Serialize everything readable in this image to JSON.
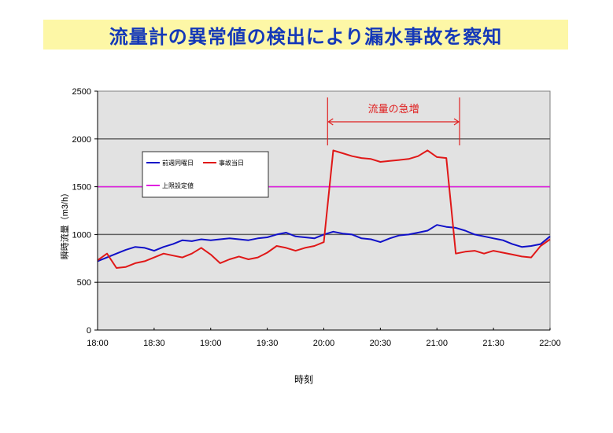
{
  "title": "流量計の異常値の検出により漏水事故を察知",
  "chart_data": {
    "type": "line",
    "title": "流量計の異常値の検出により漏水事故を察知",
    "xlabel": "時刻",
    "ylabel": "瞬時流量（m3/h）",
    "ylim": [
      0,
      2500
    ],
    "yticks": [
      0,
      500,
      1000,
      1500,
      2000,
      2500
    ],
    "xticks": [
      "18:00",
      "18:30",
      "19:00",
      "19:30",
      "20:00",
      "20:30",
      "21:00",
      "21:30",
      "22:00"
    ],
    "grid": true,
    "legend_position": "upper-left inside plot",
    "x": [
      "18:00",
      "18:05",
      "18:10",
      "18:15",
      "18:20",
      "18:25",
      "18:30",
      "18:35",
      "18:40",
      "18:45",
      "18:50",
      "18:55",
      "19:00",
      "19:05",
      "19:10",
      "19:15",
      "19:20",
      "19:25",
      "19:30",
      "19:35",
      "19:40",
      "19:45",
      "19:50",
      "19:55",
      "20:00",
      "20:05",
      "20:10",
      "20:15",
      "20:20",
      "20:25",
      "20:30",
      "20:35",
      "20:40",
      "20:45",
      "20:50",
      "20:55",
      "21:00",
      "21:05",
      "21:10",
      "21:15",
      "21:20",
      "21:25",
      "21:30",
      "21:35",
      "21:40",
      "21:45",
      "21:50",
      "21:55",
      "22:00"
    ],
    "series": [
      {
        "name": "前週同曜日",
        "color": "#1010c8",
        "values": [
          720,
          760,
          800,
          840,
          870,
          860,
          830,
          870,
          900,
          940,
          930,
          950,
          940,
          950,
          960,
          950,
          940,
          960,
          970,
          1000,
          1020,
          980,
          970,
          960,
          1000,
          1030,
          1010,
          1000,
          960,
          950,
          920,
          960,
          990,
          1000,
          1020,
          1040,
          1100,
          1080,
          1070,
          1040,
          1000,
          980,
          960,
          940,
          900,
          870,
          880,
          900,
          980
        ]
      },
      {
        "name": "事故当日",
        "color": "#e01818",
        "values": [
          730,
          800,
          650,
          660,
          700,
          720,
          760,
          800,
          780,
          760,
          800,
          860,
          790,
          700,
          740,
          770,
          740,
          760,
          810,
          880,
          860,
          830,
          860,
          880,
          920,
          1880,
          1850,
          1820,
          1800,
          1790,
          1760,
          1770,
          1780,
          1790,
          1820,
          1880,
          1810,
          1800,
          800,
          820,
          830,
          800,
          830,
          810,
          790,
          770,
          760,
          880,
          950
        ]
      },
      {
        "name": "上限設定値",
        "color": "#e020e0",
        "values": [
          1500,
          1500,
          1500,
          1500,
          1500,
          1500,
          1500,
          1500,
          1500,
          1500,
          1500,
          1500,
          1500,
          1500,
          1500,
          1500,
          1500,
          1500,
          1500,
          1500,
          1500,
          1500,
          1500,
          1500,
          1500,
          1500,
          1500,
          1500,
          1500,
          1500,
          1500,
          1500,
          1500,
          1500,
          1500,
          1500,
          1500,
          1500,
          1500,
          1500,
          1500,
          1500,
          1500,
          1500,
          1500,
          1500,
          1500,
          1500,
          1500
        ]
      }
    ],
    "annotations": [
      {
        "text": "流量の急増",
        "from": "20:02",
        "to": "21:12",
        "color": "#e02020"
      }
    ]
  }
}
